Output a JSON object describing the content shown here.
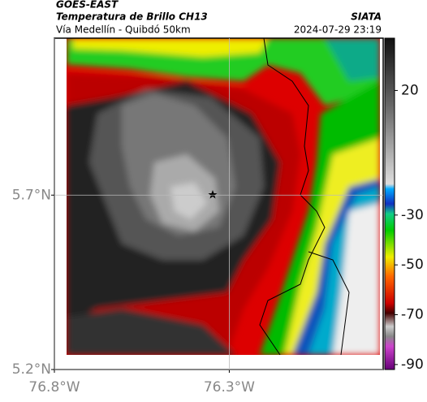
{
  "header": {
    "source": "GOES-EAST",
    "title": "Temperatura de Brillo CH13",
    "subtitle": "Vía Medellín - Quibdó 50km",
    "agency": "SIATA",
    "datetime": "2024-07-29 23:19"
  },
  "map": {
    "xlim": [
      -76.8,
      -75.86
    ],
    "ylim": [
      5.2,
      6.15
    ],
    "xticks": [
      {
        "value": -76.8,
        "label": "76.8°W"
      },
      {
        "value": -76.3,
        "label": "76.3°W"
      }
    ],
    "yticks": [
      {
        "value": 5.7,
        "label": "5.7°N"
      },
      {
        "value": 5.2,
        "label": "5.2°N"
      }
    ],
    "grid": true
  },
  "colorbar": {
    "lim": [
      -92,
      41
    ],
    "ticks": [
      20,
      -30,
      -50,
      -70,
      -90
    ]
  }
}
